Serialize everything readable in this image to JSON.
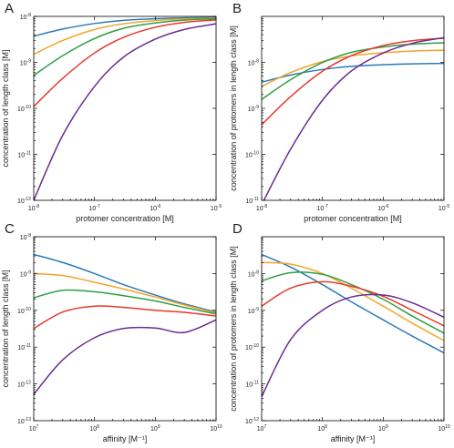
{
  "colors": {
    "series": [
      "#2a7ab8",
      "#f3a42b",
      "#2f9e44",
      "#e53a2a",
      "#6a2c91"
    ],
    "frame": "#000000",
    "text": "#222222"
  },
  "chart_data": [
    {
      "id": "A",
      "type": "line",
      "panel_label": "A",
      "xlabel": "protomer concentration [M]",
      "ylabel": "concentration of length class [M]",
      "xscale": "log",
      "yscale": "log",
      "xlim": [
        1e-08,
        1e-05
      ],
      "ylim": [
        1e-12,
        1e-08
      ],
      "x_ticks": [
        1e-08,
        1e-07,
        1e-06,
        1e-05
      ],
      "y_ticks": [
        1e-12,
        1e-11,
        1e-10,
        1e-09,
        1e-08
      ],
      "series": [
        {
          "x": [
            1e-08,
            3e-08,
            1e-07,
            3e-07,
            1e-06,
            3e-06,
            1e-05
          ],
          "y": [
            3.7e-09,
            5.3e-09,
            7e-09,
            8.2e-09,
            8.9e-09,
            9.3e-09,
            9.5e-09
          ]
        },
        {
          "x": [
            1e-08,
            3e-08,
            1e-07,
            3e-07,
            1e-06,
            3e-06,
            1e-05
          ],
          "y": [
            1.5e-09,
            3e-09,
            5.2e-09,
            6.9e-09,
            8.1e-09,
            8.8e-09,
            9.2e-09
          ]
        },
        {
          "x": [
            1e-08,
            3e-08,
            1e-07,
            3e-07,
            1e-06,
            3e-06,
            1e-05
          ],
          "y": [
            5.2e-10,
            1.4e-09,
            3.3e-09,
            5.5e-09,
            7.2e-09,
            8.3e-09,
            8.9e-09
          ]
        },
        {
          "x": [
            1e-08,
            3e-08,
            1e-07,
            3e-07,
            1e-06,
            3e-06,
            1e-05
          ],
          "y": [
            1.1e-10,
            4.5e-10,
            1.6e-09,
            3.5e-09,
            5.8e-09,
            7.4e-09,
            8.4e-09
          ]
        },
        {
          "x": [
            1e-08,
            3e-08,
            1e-07,
            3e-07,
            1e-06,
            3e-06,
            1e-05
          ],
          "y": [
            1e-12,
            2.6e-11,
            3e-10,
            1.3e-09,
            3.2e-09,
            5.2e-09,
            6.9e-09
          ]
        }
      ]
    },
    {
      "id": "B",
      "type": "line",
      "panel_label": "B",
      "xlabel": "protomer concentration [M]",
      "ylabel": "concentration of protomers in length class [M]",
      "xscale": "log",
      "yscale": "log",
      "xlim": [
        1e-08,
        1e-05
      ],
      "ylim": [
        1e-11,
        1e-07
      ],
      "x_ticks": [
        1e-08,
        1e-07,
        1e-06,
        1e-05
      ],
      "y_ticks": [
        1e-11,
        1e-10,
        1e-09,
        1e-08
      ],
      "series": [
        {
          "x": [
            1e-08,
            3e-08,
            1e-07,
            3e-07,
            1e-06,
            3e-06,
            1e-05
          ],
          "y": [
            3.7e-09,
            5.3e-09,
            7e-09,
            8.2e-09,
            8.9e-09,
            9.3e-09,
            9.5e-09
          ]
        },
        {
          "x": [
            1e-08,
            3e-08,
            1e-07,
            3e-07,
            1e-06,
            3e-06,
            1e-05
          ],
          "y": [
            3e-09,
            6e-09,
            1.04e-08,
            1.38e-08,
            1.62e-08,
            1.76e-08,
            1.84e-08
          ]
        },
        {
          "x": [
            1e-08,
            3e-08,
            1e-07,
            3e-07,
            1e-06,
            3e-06,
            1e-05
          ],
          "y": [
            1.56e-09,
            4.2e-09,
            9.9e-09,
            1.65e-08,
            2.16e-08,
            2.49e-08,
            2.67e-08
          ]
        },
        {
          "x": [
            1e-08,
            3e-08,
            1e-07,
            3e-07,
            1e-06,
            3e-06,
            1e-05
          ],
          "y": [
            4.4e-10,
            1.8e-09,
            6.4e-09,
            1.4e-08,
            2.32e-08,
            2.96e-08,
            3.36e-08
          ]
        },
        {
          "x": [
            1e-08,
            3e-08,
            1e-07,
            3e-07,
            1e-06,
            3e-06,
            1e-05
          ],
          "y": [
            8e-12,
            1.3e-10,
            1.5e-09,
            6.5e-09,
            1.6e-08,
            2.6e-08,
            3.45e-08
          ]
        }
      ]
    },
    {
      "id": "C",
      "type": "line",
      "panel_label": "C",
      "xlabel": "affinity [M⁻¹]",
      "ylabel": "concentration of length class [M]",
      "xscale": "log",
      "yscale": "log",
      "xlim": [
        10000000.0,
        10000000000.0
      ],
      "ylim": [
        1e-13,
        1e-08
      ],
      "x_ticks": [
        10000000.0,
        100000000.0,
        1000000000.0,
        10000000000.0
      ],
      "y_ticks": [
        1e-13,
        1e-12,
        1e-11,
        1e-10,
        1e-09,
        1e-08
      ],
      "series": [
        {
          "x": [
            10000000.0,
            30000000.0,
            100000000.0,
            300000000.0,
            1000000000.0,
            3000000000.0,
            10000000000.0
          ],
          "y": [
            3.3e-09,
            2e-09,
            1e-09,
            5e-10,
            2.6e-10,
            1.5e-10,
            9e-11
          ]
        },
        {
          "x": [
            10000000.0,
            30000000.0,
            100000000.0,
            300000000.0,
            1000000000.0,
            3000000000.0,
            10000000000.0
          ],
          "y": [
            1e-09,
            8.8e-10,
            5.8e-10,
            3.8e-10,
            2.3e-10,
            1.4e-10,
            8.5e-11
          ]
        },
        {
          "x": [
            10000000.0,
            30000000.0,
            100000000.0,
            300000000.0,
            1000000000.0,
            3000000000.0,
            10000000000.0
          ],
          "y": [
            2.2e-10,
            3.5e-10,
            3.2e-10,
            2.5e-10,
            1.8e-10,
            1.2e-10,
            8e-11
          ]
        },
        {
          "x": [
            10000000.0,
            30000000.0,
            100000000.0,
            300000000.0,
            1000000000.0,
            3000000000.0,
            10000000000.0
          ],
          "y": [
            3.2e-11,
            9e-11,
            1.3e-10,
            1.2e-10,
            1e-10,
            8.8e-11,
            7e-11
          ]
        },
        {
          "x": [
            10000000.0,
            30000000.0,
            100000000.0,
            300000000.0,
            1000000000.0,
            3000000000.0,
            10000000000.0
          ],
          "y": [
            5.2e-13,
            4.5e-12,
            1.8e-11,
            3.2e-11,
            3.3e-11,
            2.5e-11,
            5.5e-11
          ]
        }
      ]
    },
    {
      "id": "D",
      "type": "line",
      "panel_label": "D",
      "xlabel": "affinity [M⁻¹]",
      "ylabel": "concentration of protomers in length class [M]",
      "xscale": "log",
      "yscale": "log",
      "xlim": [
        10000000.0,
        10000000000.0
      ],
      "ylim": [
        1e-12,
        1e-07
      ],
      "x_ticks": [
        10000000.0,
        100000000.0,
        1000000000.0,
        10000000000.0
      ],
      "y_ticks": [
        1e-12,
        1e-11,
        1e-10,
        1e-09,
        1e-08
      ],
      "series": [
        {
          "x": [
            10000000.0,
            30000000.0,
            100000000.0,
            300000000.0,
            1000000000.0,
            3000000000.0,
            10000000000.0
          ],
          "y": [
            3.3e-08,
            1.5e-08,
            5e-09,
            1.7e-09,
            5.5e-10,
            2e-10,
            7e-11
          ]
        },
        {
          "x": [
            10000000.0,
            30000000.0,
            100000000.0,
            300000000.0,
            1000000000.0,
            3000000000.0,
            10000000000.0
          ],
          "y": [
            2e-08,
            1.8e-08,
            1e-08,
            4e-09,
            1.3e-09,
            4.5e-10,
            1.5e-10
          ]
        },
        {
          "x": [
            10000000.0,
            30000000.0,
            100000000.0,
            300000000.0,
            1000000000.0,
            3000000000.0,
            10000000000.0
          ],
          "y": [
            6.3e-09,
            1.05e-08,
            9.5e-09,
            5e-09,
            2e-09,
            7e-10,
            2.4e-10
          ]
        },
        {
          "x": [
            10000000.0,
            30000000.0,
            100000000.0,
            300000000.0,
            1000000000.0,
            3000000000.0,
            10000000000.0
          ],
          "y": [
            1.3e-09,
            4e-09,
            6e-09,
            4.5e-09,
            2.4e-09,
            1e-09,
            3.8e-10
          ]
        },
        {
          "x": [
            10000000.0,
            30000000.0,
            100000000.0,
            300000000.0,
            1000000000.0,
            3000000000.0,
            10000000000.0
          ],
          "y": [
            4.5e-12,
            1.6e-10,
            1e-09,
            2.3e-09,
            2.6e-09,
            1.6e-09,
            6.5e-10
          ]
        }
      ]
    }
  ]
}
